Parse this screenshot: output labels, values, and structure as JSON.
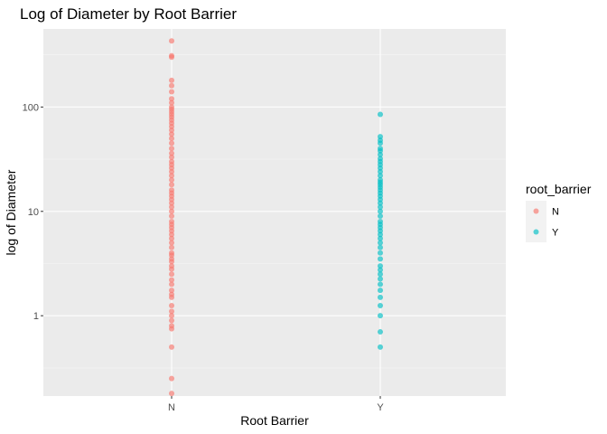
{
  "chart_data": {
    "type": "scatter",
    "title": "Log of Diameter by Root Barrier",
    "xlabel": "Root Barrier",
    "ylabel": "log of Diameter",
    "categories": [
      "N",
      "Y"
    ],
    "y_scale": "log10",
    "ylim": [
      0.17,
      560
    ],
    "y_ticks": [
      1,
      10,
      100
    ],
    "y_tick_labels": [
      "1",
      "10",
      "100"
    ],
    "grid": true,
    "legend": {
      "title": "root_barrier",
      "position": "right",
      "entries": [
        "N",
        "Y"
      ]
    },
    "series": [
      {
        "category": "N",
        "color": "#F8766D",
        "values": [
          0.18,
          0.25,
          0.5,
          0.75,
          0.8,
          0.9,
          1.0,
          1.1,
          1.25,
          1.5,
          1.6,
          1.75,
          2.0,
          2.2,
          2.5,
          2.8,
          3.0,
          3.3,
          3.5,
          3.8,
          4.0,
          4.5,
          5.0,
          5.5,
          6.0,
          6.5,
          7.0,
          7.5,
          8.0,
          9.0,
          10.0,
          11.0,
          12.0,
          13.0,
          14.0,
          15.0,
          16.0,
          18.0,
          20.0,
          22.0,
          24.0,
          26.0,
          28.0,
          30.0,
          33.0,
          36.0,
          40.0,
          45.0,
          50.0,
          55.0,
          60.0,
          65.0,
          70.0,
          75.0,
          80.0,
          85.0,
          90.0,
          95.0,
          100.0,
          110.0,
          120.0,
          140.0,
          160.0,
          180.0,
          300.0,
          310.0,
          430.0
        ]
      },
      {
        "category": "Y",
        "color": "#00BFC4",
        "values": [
          0.5,
          0.7,
          1.0,
          1.25,
          1.5,
          1.75,
          2.0,
          2.25,
          2.5,
          2.75,
          3.0,
          3.5,
          4.0,
          4.5,
          5.0,
          5.5,
          6.0,
          6.5,
          7.0,
          7.5,
          8.0,
          9.0,
          10.0,
          11.0,
          12.0,
          13.0,
          14.0,
          15.0,
          16.0,
          17.0,
          18.0,
          19.0,
          20.0,
          22.0,
          24.0,
          26.0,
          28.0,
          30.0,
          32.0,
          35.0,
          38.0,
          40.0,
          45.0,
          48.0,
          52.0,
          85.0
        ]
      }
    ]
  }
}
